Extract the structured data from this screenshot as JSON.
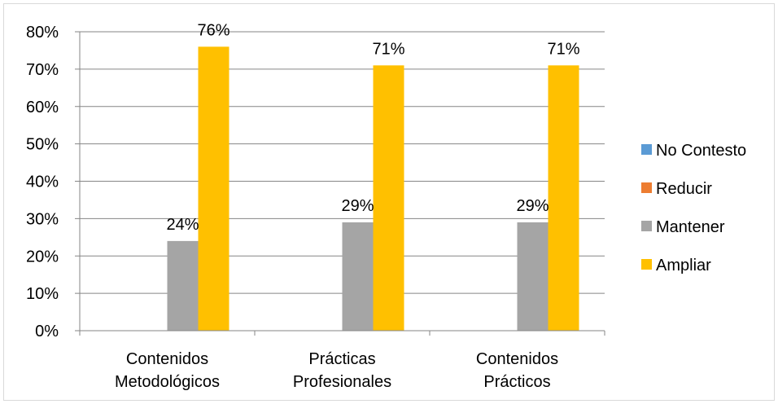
{
  "chart_data": {
    "type": "bar",
    "categories": [
      [
        "Contenidos",
        "Metodológicos"
      ],
      [
        "Prácticas",
        "Profesionales"
      ],
      [
        "Contenidos",
        "Prácticos"
      ]
    ],
    "series": [
      {
        "name": "No Contesto",
        "color": "#5b9bd5",
        "values": [
          0,
          0,
          0
        ],
        "labels": [
          "",
          "",
          ""
        ]
      },
      {
        "name": "Reducir",
        "color": "#ed7d31",
        "values": [
          0,
          0,
          0
        ],
        "labels": [
          "",
          "",
          ""
        ]
      },
      {
        "name": "Mantener",
        "color": "#a5a5a5",
        "values": [
          24,
          29,
          29
        ],
        "labels": [
          "24%",
          "29%",
          "29%"
        ]
      },
      {
        "name": "Ampliar",
        "color": "#ffc000",
        "values": [
          76,
          71,
          71
        ],
        "labels": [
          "76%",
          "71%",
          "71%"
        ]
      }
    ],
    "yticks": [
      "0%",
      "10%",
      "20%",
      "30%",
      "40%",
      "50%",
      "60%",
      "70%",
      "80%"
    ],
    "ylim": [
      0,
      80
    ],
    "grid": true,
    "legend": "right"
  }
}
